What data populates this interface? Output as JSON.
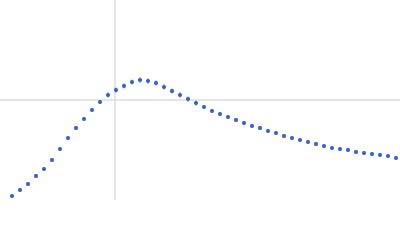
{
  "chart_data": {
    "type": "scatter",
    "color": "#3a64c0",
    "x": [
      12,
      20,
      28,
      36,
      44,
      52,
      60,
      68,
      76,
      84,
      92,
      100,
      108,
      116,
      124,
      132,
      140,
      148,
      156,
      164,
      172,
      180,
      188,
      196,
      204,
      212,
      220,
      228,
      236,
      244,
      252,
      260,
      268,
      276,
      284,
      292,
      300,
      308,
      316,
      324,
      332,
      340,
      348,
      356,
      364,
      372,
      380,
      388,
      396
    ],
    "values": [
      4,
      10,
      16,
      24,
      31,
      40,
      51,
      62,
      72,
      81,
      90,
      98,
      105,
      110,
      114,
      118,
      120,
      119,
      117,
      113,
      109,
      105,
      101,
      97,
      93,
      89,
      86,
      83,
      80,
      77,
      74,
      72,
      69,
      67,
      64,
      62,
      60,
      58,
      56,
      54,
      52,
      51,
      50,
      48,
      47,
      46,
      45,
      44,
      42
    ],
    "errors": [
      0.5,
      0.5,
      0.5,
      0.5,
      0.5,
      0.5,
      0.5,
      0.5,
      1,
      1,
      1,
      1,
      3,
      3,
      3,
      3,
      3,
      3,
      3,
      3,
      3,
      3,
      3,
      3,
      2,
      2,
      2,
      2,
      2,
      2,
      2,
      2,
      2,
      2,
      2,
      2,
      2,
      2,
      2,
      2,
      2,
      2,
      2,
      2,
      2,
      2,
      2,
      2,
      2
    ],
    "xlim": [
      0,
      400
    ],
    "ylim": [
      0,
      200
    ],
    "reference_lines": {
      "x": 115,
      "y": 100
    }
  }
}
